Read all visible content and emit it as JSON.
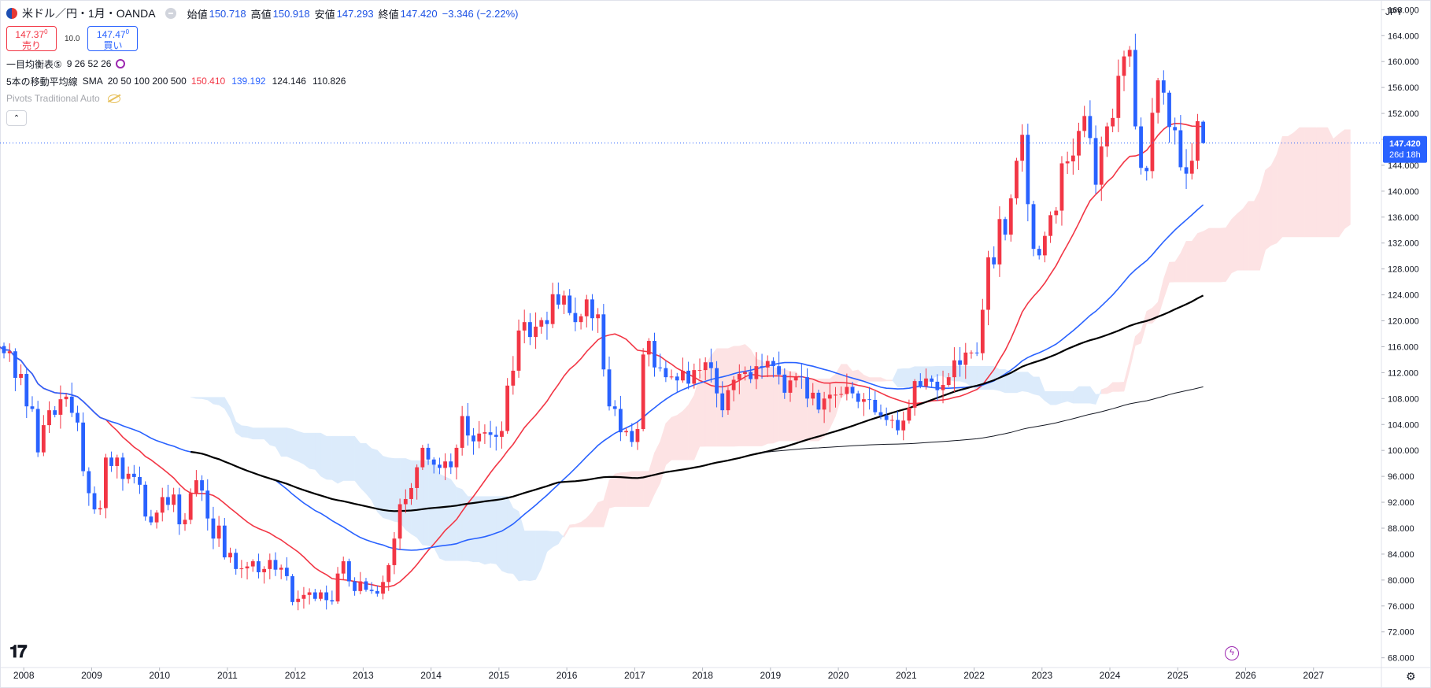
{
  "header": {
    "symbol_title": "米ドル／円・1月・OANDA",
    "ohlc": {
      "open_label": "始値",
      "open": "150.718",
      "high_label": "高値",
      "high": "150.918",
      "low_label": "安値",
      "low": "147.293",
      "close_label": "終値",
      "close": "147.420",
      "change": "−3.346 (−2.22%)"
    },
    "sell": {
      "price_main": "147.37",
      "price_sup": "0",
      "label": "売り"
    },
    "spread": "10.0",
    "buy": {
      "price_main": "147.47",
      "price_sup": "0",
      "label": "買い"
    },
    "ichimoku": {
      "label": "一目均衡表⑤",
      "params": "9 26 52 26"
    },
    "sma": {
      "label": "5本の移動平均線",
      "kind": "SMA",
      "periods": "20 50 100 200 500",
      "values": [
        "150.410",
        "139.192",
        "124.146",
        "110.826"
      ],
      "colors": [
        "#f23645",
        "#2962ff",
        "#131722",
        "#131722"
      ]
    },
    "pivots": "Pivots Traditional Auto",
    "currency": "JPY"
  },
  "price_label": {
    "value": "147.420",
    "countdown": "26d 18h"
  },
  "colors": {
    "up": "#f23645",
    "down": "#2962ff",
    "sma20": "#f23645",
    "sma50": "#2962ff",
    "sma100": "#000000",
    "sma200": "#131722",
    "cloud_bull": "#fde3e4",
    "cloud_bear": "#dcebfb",
    "price_line": "#2962ff"
  },
  "chart_data": {
    "type": "candlestick",
    "title": "米ドル／円・1月・OANDA",
    "ylim": [
      66.5,
      169.5
    ],
    "y_ticks": [
      "68.000",
      "72.000",
      "76.000",
      "80.000",
      "84.000",
      "88.000",
      "92.000",
      "96.000",
      "100.000",
      "104.000",
      "108.000",
      "112.000",
      "116.000",
      "120.000",
      "124.000",
      "128.000",
      "132.000",
      "136.000",
      "140.000",
      "144.000",
      "148.000",
      "152.000",
      "156.000",
      "160.000",
      "164.000",
      "168.000"
    ],
    "x_ticks": [
      "2008",
      "2009",
      "2010",
      "2011",
      "2012",
      "2013",
      "2014",
      "2015",
      "2016",
      "2017",
      "2018",
      "2019",
      "2020",
      "2021",
      "2022",
      "2023",
      "2024",
      "2025",
      "2026",
      "2027"
    ],
    "x_range": [
      2007.65,
      2028.0
    ],
    "current_price": 147.42,
    "monthly_closes_2007_08_to_2025_08": [
      116.1,
      115.0,
      115.3,
      111.2,
      111.8,
      106.8,
      106.4,
      99.7,
      103.9,
      106.2,
      105.5,
      107.9,
      108.3,
      105.8,
      104.3,
      96.8,
      93.4,
      90.9,
      91.1,
      98.9,
      97.6,
      98.9,
      95.6,
      96.4,
      95.9,
      94.7,
      89.8,
      88.9,
      90.4,
      92.8,
      91.6,
      93.2,
      88.6,
      89.3,
      93.4,
      95.4,
      93.8,
      89.5,
      86.4,
      88.4,
      83.5,
      84.2,
      81.7,
      81.8,
      82.1,
      82.9,
      81.2,
      81.7,
      83.1,
      81.6,
      81.9,
      80.6,
      76.6,
      77.1,
      77.7,
      78.1,
      77.1,
      78.1,
      76.9,
      76.7,
      81.0,
      82.9,
      79.8,
      78.3,
      79.8,
      78.5,
      78.3,
      77.9,
      79.7,
      82.3,
      86.4,
      91.7,
      92.5,
      94.2,
      97.4,
      100.4,
      98.6,
      97.8,
      97.3,
      98.3,
      97.4,
      100.4,
      105.3,
      102.3,
      101.4,
      102.6,
      102.8,
      102.4,
      102.1,
      103.0,
      110.0,
      112.3,
      118.5,
      119.8,
      117.5,
      119.1,
      120.1,
      119.5,
      124.1,
      122.5,
      123.9,
      121.2,
      119.8,
      120.7,
      123.3,
      120.4,
      121.0,
      112.5,
      106.8,
      106.4,
      102.8,
      103.0,
      101.3,
      103.3,
      114.8,
      116.9,
      112.8,
      112.7,
      111.3,
      111.4,
      110.8,
      112.3,
      110.3,
      112.4,
      112.4,
      113.6,
      112.7,
      108.8,
      106.2,
      109.3,
      110.9,
      111.8,
      112.1,
      111.0,
      113.0,
      112.8,
      113.8,
      113.0,
      111.7,
      108.9,
      110.8,
      111.4,
      111.3,
      108.0,
      108.9,
      106.3,
      108.0,
      108.6,
      108.6,
      108.7,
      109.8,
      108.8,
      107.5,
      107.9,
      107.8,
      105.9,
      105.4,
      104.7,
      104.7,
      103.1,
      104.6,
      106.6,
      110.7,
      109.9,
      111.1,
      110.6,
      109.3,
      110.1,
      111.3,
      113.9,
      113.2,
      115.1,
      115.1,
      115.0,
      121.7,
      129.8,
      128.7,
      135.7,
      133.3,
      138.9,
      144.7,
      148.7,
      138.0,
      131.1,
      130.1,
      133.1,
      136.3,
      137.0,
      144.3,
      144.6,
      145.5,
      149.3,
      151.6,
      148.2,
      141.0,
      146.9,
      150.0,
      151.3,
      157.8,
      160.8,
      161.8,
      150.0,
      143.6,
      143.1,
      152.1,
      157.1,
      155.2,
      149.9,
      149.4,
      143.7,
      142.7,
      144.7,
      150.8,
      147.4
    ],
    "legend": [
      "SMA 20",
      "SMA 50",
      "SMA 100",
      "SMA 200",
      "SMA 500",
      "Ichimoku"
    ]
  }
}
